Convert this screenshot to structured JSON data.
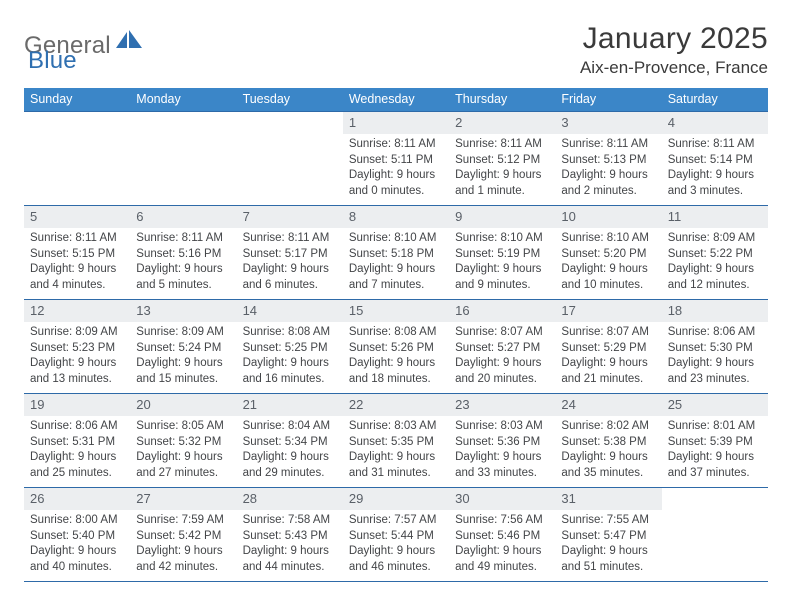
{
  "brand": {
    "text_general": "General",
    "text_blue": "Blue",
    "logo_color": "#2f6fb0"
  },
  "header": {
    "month_title": "January 2025",
    "location": "Aix-en-Provence, France"
  },
  "calendar": {
    "header_bg": "#3b86c8",
    "border_color": "#2e6aa8",
    "dayband_bg": "#eceef0",
    "days_of_week": [
      "Sunday",
      "Monday",
      "Tuesday",
      "Wednesday",
      "Thursday",
      "Friday",
      "Saturday"
    ],
    "weeks": [
      [
        null,
        null,
        null,
        {
          "n": "1",
          "sunrise": "8:11 AM",
          "sunset": "5:11 PM",
          "daylight": "9 hours and 0 minutes."
        },
        {
          "n": "2",
          "sunrise": "8:11 AM",
          "sunset": "5:12 PM",
          "daylight": "9 hours and 1 minute."
        },
        {
          "n": "3",
          "sunrise": "8:11 AM",
          "sunset": "5:13 PM",
          "daylight": "9 hours and 2 minutes."
        },
        {
          "n": "4",
          "sunrise": "8:11 AM",
          "sunset": "5:14 PM",
          "daylight": "9 hours and 3 minutes."
        }
      ],
      [
        {
          "n": "5",
          "sunrise": "8:11 AM",
          "sunset": "5:15 PM",
          "daylight": "9 hours and 4 minutes."
        },
        {
          "n": "6",
          "sunrise": "8:11 AM",
          "sunset": "5:16 PM",
          "daylight": "9 hours and 5 minutes."
        },
        {
          "n": "7",
          "sunrise": "8:11 AM",
          "sunset": "5:17 PM",
          "daylight": "9 hours and 6 minutes."
        },
        {
          "n": "8",
          "sunrise": "8:10 AM",
          "sunset": "5:18 PM",
          "daylight": "9 hours and 7 minutes."
        },
        {
          "n": "9",
          "sunrise": "8:10 AM",
          "sunset": "5:19 PM",
          "daylight": "9 hours and 9 minutes."
        },
        {
          "n": "10",
          "sunrise": "8:10 AM",
          "sunset": "5:20 PM",
          "daylight": "9 hours and 10 minutes."
        },
        {
          "n": "11",
          "sunrise": "8:09 AM",
          "sunset": "5:22 PM",
          "daylight": "9 hours and 12 minutes."
        }
      ],
      [
        {
          "n": "12",
          "sunrise": "8:09 AM",
          "sunset": "5:23 PM",
          "daylight": "9 hours and 13 minutes."
        },
        {
          "n": "13",
          "sunrise": "8:09 AM",
          "sunset": "5:24 PM",
          "daylight": "9 hours and 15 minutes."
        },
        {
          "n": "14",
          "sunrise": "8:08 AM",
          "sunset": "5:25 PM",
          "daylight": "9 hours and 16 minutes."
        },
        {
          "n": "15",
          "sunrise": "8:08 AM",
          "sunset": "5:26 PM",
          "daylight": "9 hours and 18 minutes."
        },
        {
          "n": "16",
          "sunrise": "8:07 AM",
          "sunset": "5:27 PM",
          "daylight": "9 hours and 20 minutes."
        },
        {
          "n": "17",
          "sunrise": "8:07 AM",
          "sunset": "5:29 PM",
          "daylight": "9 hours and 21 minutes."
        },
        {
          "n": "18",
          "sunrise": "8:06 AM",
          "sunset": "5:30 PM",
          "daylight": "9 hours and 23 minutes."
        }
      ],
      [
        {
          "n": "19",
          "sunrise": "8:06 AM",
          "sunset": "5:31 PM",
          "daylight": "9 hours and 25 minutes."
        },
        {
          "n": "20",
          "sunrise": "8:05 AM",
          "sunset": "5:32 PM",
          "daylight": "9 hours and 27 minutes."
        },
        {
          "n": "21",
          "sunrise": "8:04 AM",
          "sunset": "5:34 PM",
          "daylight": "9 hours and 29 minutes."
        },
        {
          "n": "22",
          "sunrise": "8:03 AM",
          "sunset": "5:35 PM",
          "daylight": "9 hours and 31 minutes."
        },
        {
          "n": "23",
          "sunrise": "8:03 AM",
          "sunset": "5:36 PM",
          "daylight": "9 hours and 33 minutes."
        },
        {
          "n": "24",
          "sunrise": "8:02 AM",
          "sunset": "5:38 PM",
          "daylight": "9 hours and 35 minutes."
        },
        {
          "n": "25",
          "sunrise": "8:01 AM",
          "sunset": "5:39 PM",
          "daylight": "9 hours and 37 minutes."
        }
      ],
      [
        {
          "n": "26",
          "sunrise": "8:00 AM",
          "sunset": "5:40 PM",
          "daylight": "9 hours and 40 minutes."
        },
        {
          "n": "27",
          "sunrise": "7:59 AM",
          "sunset": "5:42 PM",
          "daylight": "9 hours and 42 minutes."
        },
        {
          "n": "28",
          "sunrise": "7:58 AM",
          "sunset": "5:43 PM",
          "daylight": "9 hours and 44 minutes."
        },
        {
          "n": "29",
          "sunrise": "7:57 AM",
          "sunset": "5:44 PM",
          "daylight": "9 hours and 46 minutes."
        },
        {
          "n": "30",
          "sunrise": "7:56 AM",
          "sunset": "5:46 PM",
          "daylight": "9 hours and 49 minutes."
        },
        {
          "n": "31",
          "sunrise": "7:55 AM",
          "sunset": "5:47 PM",
          "daylight": "9 hours and 51 minutes."
        },
        null
      ]
    ],
    "labels": {
      "sunrise": "Sunrise:",
      "sunset": "Sunset:",
      "daylight": "Daylight:"
    }
  }
}
